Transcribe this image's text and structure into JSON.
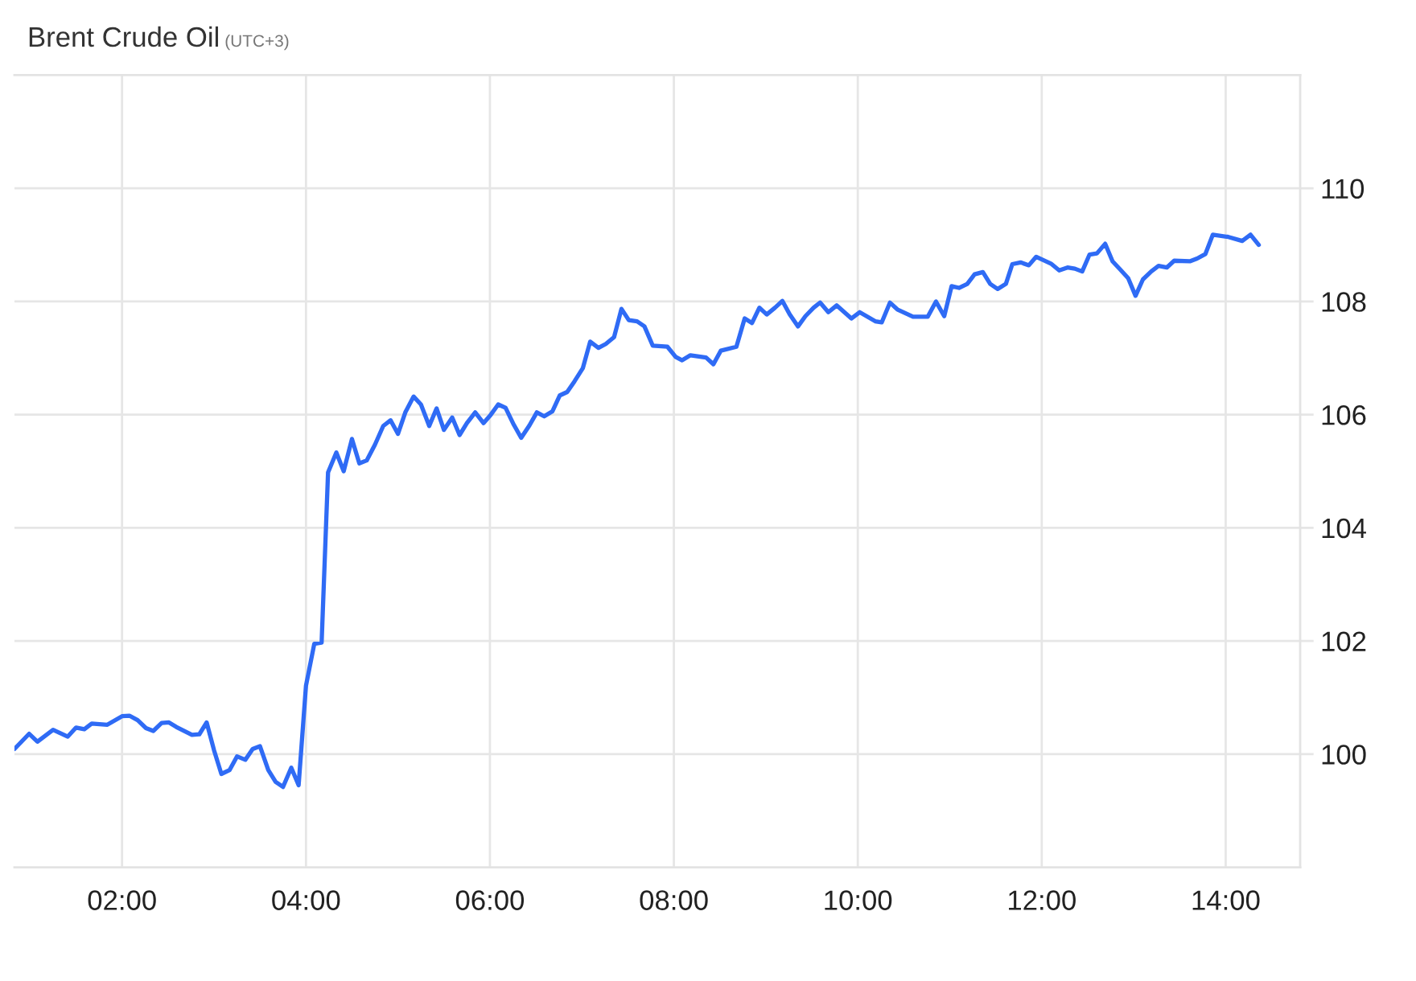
{
  "chart_data": {
    "type": "line",
    "title": "Brent Crude Oil",
    "subtitle": "(UTC+3)",
    "x": [
      0.83,
      0.99,
      1.08,
      1.25,
      1.41,
      1.5,
      1.59,
      1.67,
      1.84,
      2.0,
      2.08,
      2.17,
      2.26,
      2.34,
      2.43,
      2.51,
      2.59,
      2.76,
      2.84,
      2.92,
      3.0,
      3.08,
      3.17,
      3.25,
      3.34,
      3.42,
      3.5,
      3.59,
      3.67,
      3.75,
      3.84,
      3.92,
      4.0,
      4.09,
      4.17,
      4.24,
      4.33,
      4.41,
      4.5,
      4.58,
      4.66,
      4.75,
      4.84,
      4.92,
      5.0,
      5.08,
      5.17,
      5.25,
      5.34,
      5.42,
      5.5,
      5.59,
      5.67,
      5.75,
      5.84,
      5.93,
      6.01,
      6.09,
      6.17,
      6.26,
      6.34,
      6.43,
      6.51,
      6.59,
      6.68,
      6.76,
      6.84,
      6.92,
      7.01,
      7.09,
      7.18,
      7.26,
      7.35,
      7.43,
      7.51,
      7.6,
      7.68,
      7.77,
      7.93,
      8.02,
      8.09,
      8.18,
      8.35,
      8.43,
      8.51,
      8.68,
      8.77,
      8.85,
      8.93,
      9.01,
      9.1,
      9.18,
      9.26,
      9.35,
      9.43,
      9.52,
      9.59,
      9.68,
      9.77,
      9.93,
      10.02,
      10.19,
      10.26,
      10.35,
      10.43,
      10.6,
      10.76,
      10.85,
      10.94,
      11.02,
      11.1,
      11.19,
      11.27,
      11.36,
      11.44,
      11.52,
      11.61,
      11.68,
      11.77,
      11.86,
      11.94,
      12.1,
      12.19,
      12.28,
      12.36,
      12.44,
      12.52,
      12.6,
      12.69,
      12.77,
      12.85,
      12.94,
      13.02,
      13.1,
      13.19,
      13.27,
      13.36,
      13.44,
      13.61,
      13.69,
      13.78,
      13.86,
      14.03,
      14.18,
      14.27,
      14.36
    ],
    "series": [
      {
        "color": "#2f6bf5",
        "values": [
          100.09,
          100.36,
          100.22,
          100.43,
          100.31,
          100.47,
          100.44,
          100.54,
          100.52,
          100.67,
          100.68,
          100.6,
          100.46,
          100.41,
          100.55,
          100.56,
          100.48,
          100.34,
          100.35,
          100.56,
          100.07,
          99.65,
          99.72,
          99.96,
          99.9,
          100.09,
          100.14,
          99.72,
          99.51,
          99.42,
          99.76,
          99.45,
          101.21,
          101.95,
          101.97,
          104.98,
          105.33,
          105.0,
          105.57,
          105.14,
          105.19,
          105.47,
          105.8,
          105.9,
          105.66,
          106.04,
          106.32,
          106.18,
          105.8,
          106.11,
          105.73,
          105.95,
          105.64,
          105.85,
          106.04,
          105.85,
          106.0,
          106.18,
          106.12,
          105.82,
          105.59,
          105.81,
          106.04,
          105.97,
          106.06,
          106.34,
          106.4,
          106.59,
          106.82,
          107.29,
          107.18,
          107.25,
          107.37,
          107.87,
          107.67,
          107.65,
          107.56,
          107.22,
          107.2,
          107.02,
          106.96,
          107.05,
          107.01,
          106.89,
          107.13,
          107.2,
          107.7,
          107.62,
          107.89,
          107.77,
          107.89,
          108.01,
          107.77,
          107.56,
          107.74,
          107.89,
          107.98,
          107.81,
          107.93,
          107.7,
          107.81,
          107.65,
          107.63,
          107.98,
          107.86,
          107.73,
          107.73,
          108.0,
          107.74,
          108.27,
          108.24,
          108.31,
          108.48,
          108.52,
          108.31,
          108.22,
          108.31,
          108.66,
          108.69,
          108.64,
          108.79,
          108.67,
          108.55,
          108.6,
          108.58,
          108.53,
          108.83,
          108.85,
          109.02,
          108.71,
          108.57,
          108.41,
          108.1,
          108.39,
          108.53,
          108.63,
          108.6,
          108.72,
          108.71,
          108.76,
          108.84,
          109.18,
          109.14,
          109.07,
          109.18,
          109.0
        ]
      }
    ],
    "xlim": [
      0.83,
      14.81
    ],
    "xticks": [
      {
        "value": 2,
        "label": "02:00"
      },
      {
        "value": 4,
        "label": "04:00"
      },
      {
        "value": 6,
        "label": "06:00"
      },
      {
        "value": 8,
        "label": "08:00"
      },
      {
        "value": 10,
        "label": "10:00"
      },
      {
        "value": 12,
        "label": "12:00"
      },
      {
        "value": 14,
        "label": "14:00"
      }
    ],
    "ylim": [
      98,
      112
    ],
    "yticks": [
      100,
      102,
      104,
      106,
      108,
      110
    ],
    "grid": true
  }
}
